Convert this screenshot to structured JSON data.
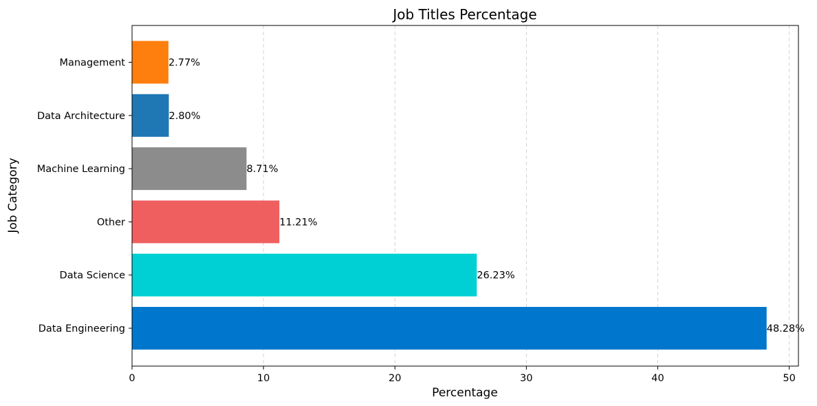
{
  "chart_data": {
    "type": "bar",
    "orientation": "horizontal",
    "title": "Job Titles Percentage",
    "xlabel": "Percentage",
    "ylabel": "Job Category",
    "categories": [
      "Data Engineering",
      "Data Science",
      "Other",
      "Machine Learning",
      "Data Architecture",
      "Management"
    ],
    "values": [
      48.28,
      26.23,
      11.21,
      8.71,
      2.8,
      2.77
    ],
    "value_labels": [
      "48.28%",
      "26.23%",
      "11.21%",
      "8.71%",
      "2.80%",
      "2.77%"
    ],
    "colors": [
      "#0077cc",
      "#00d0d4",
      "#f05f60",
      "#8c8c8c",
      "#1f77b4",
      "#ff7f0e"
    ],
    "xlim": [
      0,
      50.7
    ],
    "xticks": [
      0,
      10,
      20,
      30,
      40,
      50
    ],
    "grid": "x-dashed",
    "legend": "none"
  }
}
